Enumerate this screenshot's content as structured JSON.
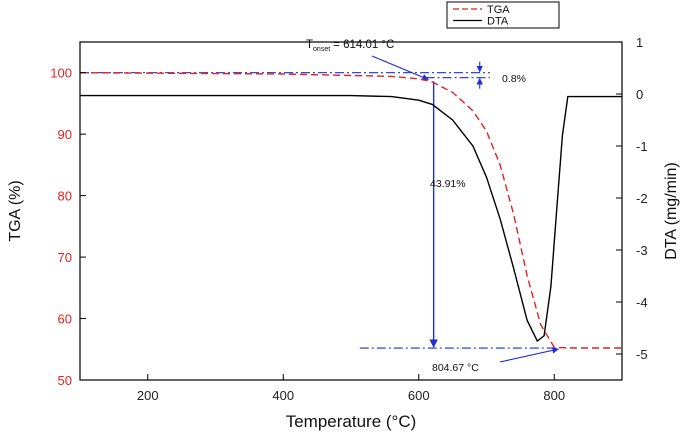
{
  "chart_data": {
    "type": "line",
    "xlabel": "Temperature (°C)",
    "ylabel_left": "TGA (%)",
    "ylabel_right": "DTA (mg/min)",
    "xlim": [
      100,
      900
    ],
    "ylim_left": [
      50,
      105
    ],
    "ylim_right": [
      -5.5,
      1
    ],
    "x_ticks": [
      200,
      400,
      600,
      800
    ],
    "y_left_ticks": [
      50,
      60,
      70,
      80,
      90,
      100
    ],
    "y_right_ticks": [
      1,
      0,
      -1,
      -2,
      -3,
      -4,
      -5
    ],
    "grid": false,
    "legend_position": "top",
    "legend": [
      "TGA",
      "DTA"
    ],
    "series": [
      {
        "name": "TGA",
        "axis": "left",
        "color": "#e32222",
        "style": "dashed",
        "points": [
          [
            100,
            100
          ],
          [
            400,
            99.8
          ],
          [
            560,
            99.4
          ],
          [
            600,
            99.0
          ],
          [
            620,
            98.5
          ],
          [
            650,
            96.8
          ],
          [
            680,
            93.8
          ],
          [
            700,
            90.5
          ],
          [
            720,
            85.0
          ],
          [
            740,
            77.0
          ],
          [
            760,
            67.0
          ],
          [
            780,
            59.0
          ],
          [
            800,
            55.3
          ],
          [
            830,
            55.2
          ],
          [
            900,
            55.2
          ]
        ]
      },
      {
        "name": "DTA",
        "axis": "right",
        "color": "#000000",
        "style": "solid",
        "points": [
          [
            100,
            -0.03
          ],
          [
            500,
            -0.03
          ],
          [
            560,
            -0.05
          ],
          [
            600,
            -0.12
          ],
          [
            620,
            -0.2
          ],
          [
            650,
            -0.5
          ],
          [
            680,
            -1.0
          ],
          [
            700,
            -1.6
          ],
          [
            720,
            -2.4
          ],
          [
            740,
            -3.35
          ],
          [
            760,
            -4.35
          ],
          [
            775,
            -4.75
          ],
          [
            785,
            -4.65
          ],
          [
            795,
            -3.7
          ],
          [
            805,
            -2.0
          ],
          [
            812,
            -0.8
          ],
          [
            820,
            -0.05
          ],
          [
            900,
            -0.05
          ]
        ]
      }
    ],
    "annotations": {
      "onset": "T onset = 614.01 °C",
      "onset_main": "T",
      "onset_sub": "onset",
      "onset_value": "= 614.01 °C",
      "initial_loss": "0.8%",
      "mass_loss": "43.91%",
      "end_temp": "804.67 °C"
    }
  }
}
